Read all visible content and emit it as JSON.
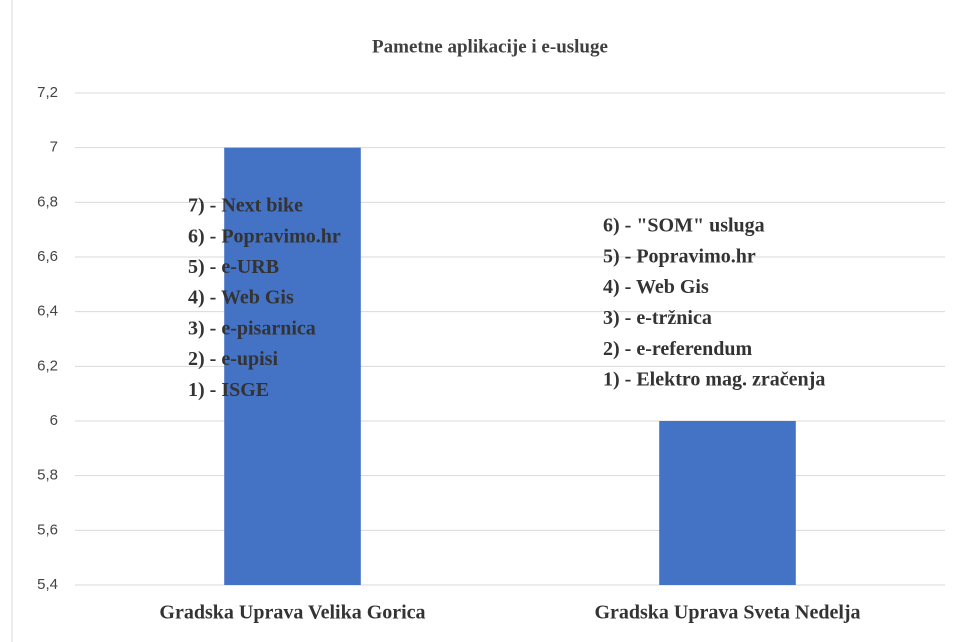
{
  "chart_data": {
    "type": "bar",
    "title": "Pametne aplikacije i e-usluge",
    "categories": [
      "Gradska Uprava Velika Gorica",
      "Gradska Uprava Sveta Nedelja"
    ],
    "values": [
      7,
      6
    ],
    "color": "#4472c4",
    "ylim": [
      5.4,
      7.2
    ],
    "yticks": [
      {
        "value": 5.4,
        "label": "5,4"
      },
      {
        "value": 5.6,
        "label": "5,6"
      },
      {
        "value": 5.8,
        "label": "5,8"
      },
      6,
      {
        "value": 6.2,
        "label": "6,2"
      },
      {
        "value": 6.4,
        "label": "6,4"
      },
      {
        "value": 6.6,
        "label": "6,6"
      },
      {
        "value": 6.8,
        "label": "6,8"
      },
      7,
      {
        "value": 7.2,
        "label": "7,2"
      }
    ],
    "grid": true,
    "annotations": [
      {
        "lines": [
          "7) - Next bike",
          "6) - Popravimo.hr",
          "5) - e-URB",
          "4) - Web Gis",
          "3) - e-pisarnica",
          "2) - e-upisi",
          "1) - ISGE"
        ]
      },
      {
        "lines": [
          "6) - \"SOM\" usluga",
          "5) - Popravimo.hr",
          "4) - Web Gis",
          "3) - e-tržnica",
          "2) - e-referendum",
          "1) - Elektro mag. zračenja"
        ]
      }
    ]
  }
}
